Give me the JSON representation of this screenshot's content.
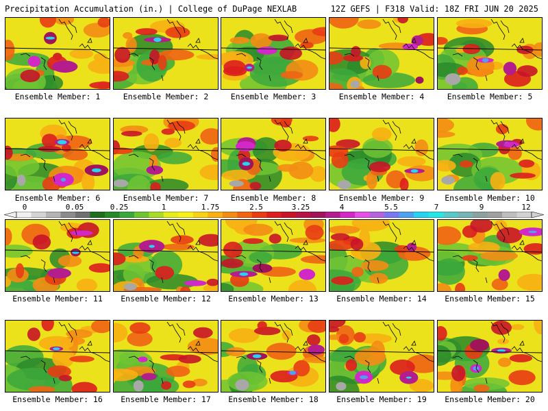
{
  "header": {
    "title": "Precipitation Accumulation (in.) | College of DuPage NEXLAB",
    "run_info": "12Z GEFS | F318 Valid: 18Z FRI JUN 20 2025"
  },
  "colors": {
    "background": "#ffffff",
    "border": "#000000"
  },
  "panels": [
    {
      "label": "Ensemble Member: 1"
    },
    {
      "label": "Ensemble Member: 2"
    },
    {
      "label": "Ensemble Member: 3"
    },
    {
      "label": "Ensemble Member: 4"
    },
    {
      "label": "Ensemble Member: 5"
    },
    {
      "label": "Ensemble Member: 6"
    },
    {
      "label": "Ensemble Member: 7"
    },
    {
      "label": "Ensemble Member: 8"
    },
    {
      "label": "Ensemble Member: 9"
    },
    {
      "label": "Ensemble Member: 10"
    },
    {
      "label": "Ensemble Member: 11"
    },
    {
      "label": "Ensemble Member: 12"
    },
    {
      "label": "Ensemble Member: 13"
    },
    {
      "label": "Ensemble Member: 14"
    },
    {
      "label": "Ensemble Member: 15"
    },
    {
      "label": "Ensemble Member: 16"
    },
    {
      "label": "Ensemble Member: 17"
    },
    {
      "label": "Ensemble Member: 18"
    },
    {
      "label": "Ensemble Member: 19"
    },
    {
      "label": "Ensemble Member: 20"
    }
  ],
  "colorbar": {
    "ticks": [
      "0",
      "0.05",
      "0.25",
      "1",
      "1.75",
      "2.5",
      "3.25",
      "4",
      "5.5",
      "7",
      "9",
      "12"
    ],
    "colors": [
      "#f0f0f0",
      "#d4d4d4",
      "#b4b4b4",
      "#8c8c8c",
      "#707070",
      "#1e6e1e",
      "#2a8a2a",
      "#3ca83c",
      "#70c434",
      "#a8dc28",
      "#e4ec1e",
      "#f8f01a",
      "#f8d214",
      "#f8b014",
      "#f48c14",
      "#f06414",
      "#e83c14",
      "#dc1e1e",
      "#c81428",
      "#b41446",
      "#a0145a",
      "#b41e8c",
      "#d228c8",
      "#e650e6",
      "#b464dc",
      "#7878f0",
      "#50a0f0",
      "#28d2f0",
      "#28e6e6",
      "#5ac8c8",
      "#78b4b4",
      "#8ca0a0",
      "#a0a0a0",
      "#bebebe",
      "#d2d2d2"
    ]
  }
}
